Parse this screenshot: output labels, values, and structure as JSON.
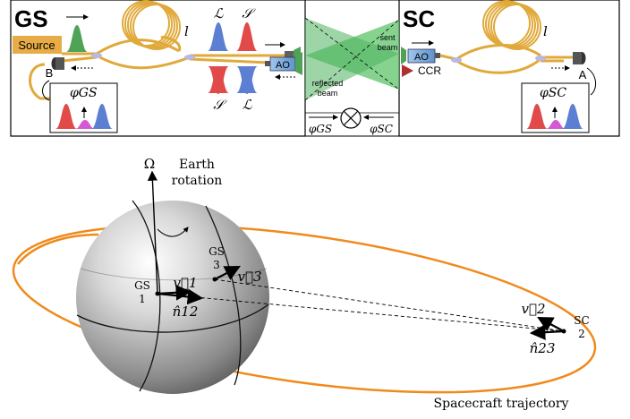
{
  "colors": {
    "fiber": "#e0a93a",
    "source_box": "#e8ac46",
    "orbit": "#f08a1c",
    "beam_green": "#5cc46a",
    "pulse_green": "#4ea356",
    "pulse_blue": "#5d7fd3",
    "pulse_red": "#e24a4a",
    "pulse_magenta": "#d45ad4",
    "ao_blue": "#7fb3e6",
    "ccr_red": "#b03030"
  },
  "top": {
    "gs": {
      "title": "GS",
      "source_label": "Source",
      "coil_label": "l",
      "detector_label": "B",
      "pulse_labels_top": [
        "ℒ",
        "𝒮"
      ],
      "pulse_labels_bottom": [
        "𝒮",
        "ℒ"
      ],
      "ao_label": "AO",
      "phase_label": "φGS"
    },
    "link": {
      "sent_label_1": "sent",
      "sent_label_2": "beam",
      "reflected_label_1": "reflected",
      "reflected_label_2": "beam",
      "phi_gs": "φGS",
      "phi_sc": "φSC"
    },
    "sc": {
      "title": "SC",
      "ao_label": "AO",
      "ccr_label": "CCR",
      "coil_label": "l",
      "detector_label": "A",
      "phase_label": "φSC"
    }
  },
  "bottom": {
    "omega": "Ω",
    "earth_rotation_1": "Earth",
    "earth_rotation_2": "rotation",
    "gs1_name": "GS",
    "gs1_num": "1",
    "gs3_name": "GS",
    "gs3_num": "3",
    "v1": "v⃗1",
    "v3": "v⃗3",
    "n12": "n̂12",
    "v2": "v⃗2",
    "n23": "n̂23",
    "sc2_name": "SC",
    "sc2_num": "2",
    "trajectory_label": "Spacecraft trajectory"
  }
}
